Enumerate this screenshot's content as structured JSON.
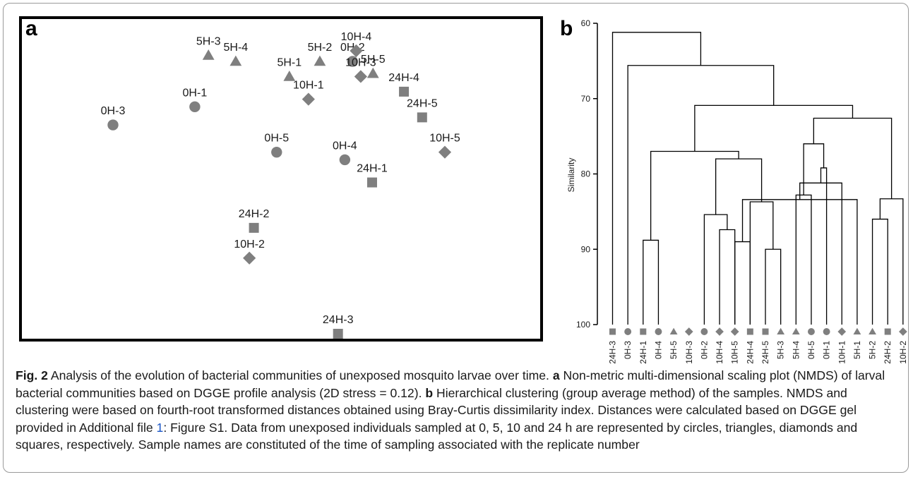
{
  "colors": {
    "marker": "#7f7f7f",
    "line": "#000000",
    "link": "#1a56c8",
    "frame": "#9a9a9a"
  },
  "panel_a_letter": "a",
  "panel_b_letter": "b",
  "chart_data": [
    {
      "type": "scatter",
      "panel": "a",
      "title": "",
      "xlabel": "",
      "ylabel": "",
      "axes_visible": false,
      "marker_legend": {
        "0H": "circle",
        "5H": "triangle",
        "10H": "diamond",
        "24H": "square"
      },
      "points": [
        {
          "label": "0H-1",
          "x": 0.27,
          "y": 0.5,
          "group": "0H",
          "marker": "circle"
        },
        {
          "label": "0H-2",
          "x": 0.617,
          "y": 0.8,
          "group": "0H",
          "marker": "circle"
        },
        {
          "label": "0H-3",
          "x": 0.09,
          "y": 0.38,
          "group": "0H",
          "marker": "circle"
        },
        {
          "label": "0H-4",
          "x": 0.6,
          "y": 0.15,
          "group": "0H",
          "marker": "circle"
        },
        {
          "label": "0H-5",
          "x": 0.45,
          "y": 0.2,
          "group": "0H",
          "marker": "circle"
        },
        {
          "label": "5H-1",
          "x": 0.478,
          "y": 0.7,
          "group": "5H",
          "marker": "triangle"
        },
        {
          "label": "5H-2",
          "x": 0.545,
          "y": 0.8,
          "group": "5H",
          "marker": "triangle"
        },
        {
          "label": "5H-3",
          "x": 0.3,
          "y": 0.84,
          "group": "5H",
          "marker": "triangle"
        },
        {
          "label": "5H-4",
          "x": 0.36,
          "y": 0.8,
          "group": "5H",
          "marker": "triangle"
        },
        {
          "label": "5H-5",
          "x": 0.662,
          "y": 0.72,
          "group": "5H",
          "marker": "triangle"
        },
        {
          "label": "10H-1",
          "x": 0.52,
          "y": 0.55,
          "group": "10H",
          "marker": "diamond"
        },
        {
          "label": "10H-2",
          "x": 0.39,
          "y": -0.5,
          "group": "10H",
          "marker": "diamond"
        },
        {
          "label": "10H-3",
          "x": 0.635,
          "y": 0.7,
          "group": "10H",
          "marker": "diamond"
        },
        {
          "label": "10H-4",
          "x": 0.625,
          "y": 0.87,
          "group": "10H",
          "marker": "diamond"
        },
        {
          "label": "10H-5",
          "x": 0.82,
          "y": 0.2,
          "group": "10H",
          "marker": "diamond"
        },
        {
          "label": "24H-1",
          "x": 0.66,
          "y": 0.0,
          "group": "24H",
          "marker": "square"
        },
        {
          "label": "24H-2",
          "x": 0.4,
          "y": -0.3,
          "group": "24H",
          "marker": "square"
        },
        {
          "label": "24H-3",
          "x": 0.585,
          "y": -1.0,
          "group": "24H",
          "marker": "square"
        },
        {
          "label": "24H-4",
          "x": 0.73,
          "y": 0.6,
          "group": "24H",
          "marker": "square"
        },
        {
          "label": "24H-5",
          "x": 0.77,
          "y": 0.43,
          "group": "24H",
          "marker": "square"
        }
      ]
    },
    {
      "type": "dendrogram",
      "panel": "b",
      "ylabel": "Similarity",
      "yticks": [
        60,
        70,
        80,
        90,
        100
      ],
      "ylim": [
        60,
        100
      ],
      "leaves": [
        {
          "label": "24H-3",
          "marker": "square"
        },
        {
          "label": "0H-3",
          "marker": "circle"
        },
        {
          "label": "24H-1",
          "marker": "square"
        },
        {
          "label": "0H-4",
          "marker": "circle"
        },
        {
          "label": "5H-5",
          "marker": "triangle"
        },
        {
          "label": "10H-3",
          "marker": "diamond"
        },
        {
          "label": "0H-2",
          "marker": "circle"
        },
        {
          "label": "10H-4",
          "marker": "diamond"
        },
        {
          "label": "10H-5",
          "marker": "diamond"
        },
        {
          "label": "24H-4",
          "marker": "square"
        },
        {
          "label": "24H-5",
          "marker": "square"
        },
        {
          "label": "5H-3",
          "marker": "triangle"
        },
        {
          "label": "5H-4",
          "marker": "triangle"
        },
        {
          "label": "0H-5",
          "marker": "circle"
        },
        {
          "label": "0H-1",
          "marker": "circle"
        },
        {
          "label": "10H-1",
          "marker": "diamond"
        },
        {
          "label": "5H-1",
          "marker": "triangle"
        },
        {
          "label": "5H-2",
          "marker": "triangle"
        },
        {
          "label": "24H-2",
          "marker": "square"
        },
        {
          "label": "10H-2",
          "marker": "diamond"
        }
      ],
      "merges": [
        [
          17,
          18,
          86.0
        ],
        [
          8,
          9,
          89.0
        ],
        [
          7,
          8,
          87.4
        ],
        [
          2,
          3,
          88.8
        ],
        [
          6,
          22,
          85.4
        ],
        [
          10,
          11,
          90.0
        ],
        [
          12,
          13,
          82.8
        ],
        [
          16,
          21,
          83.4
        ],
        [
          15,
          27,
          81.2
        ],
        [
          14,
          28,
          79.2
        ],
        [
          19,
          20,
          83.3
        ],
        [
          26,
          29,
          76.0
        ],
        [
          9,
          25,
          83.7
        ],
        [
          24,
          32,
          78.0
        ],
        [
          23,
          33,
          77.0
        ],
        [
          31,
          30,
          72.6
        ],
        [
          34,
          35,
          70.9
        ],
        [
          1,
          36,
          65.6
        ],
        [
          0,
          37,
          61.2
        ]
      ]
    }
  ],
  "caption": {
    "fig_label": "Fig. 2",
    "text1": " Analysis of the evolution of bacterial communities of unexposed mosquito larvae over time. ",
    "a_label": "a",
    "text2": " Non-metric multi-dimensional scaling plot (NMDS) of larval bacterial communities based on DGGE profile analysis (2D stress = 0.12). ",
    "b_label": "b",
    "text3": " Hierarchical clustering (group average method) of the samples. NMDS and clustering were based on fourth-root transformed distances obtained using Bray-Curtis dissimilarity index. Distances were calculated based on DGGE gel provided in Additional file ",
    "link": "1",
    "text4": ": Figure S1. Data from unexposed individuals sampled at 0, 5, 10 and 24 h are represented by circles, triangles, diamonds and squares, respectively. Sample names are constituted of the time of sampling associated with the replicate number"
  }
}
